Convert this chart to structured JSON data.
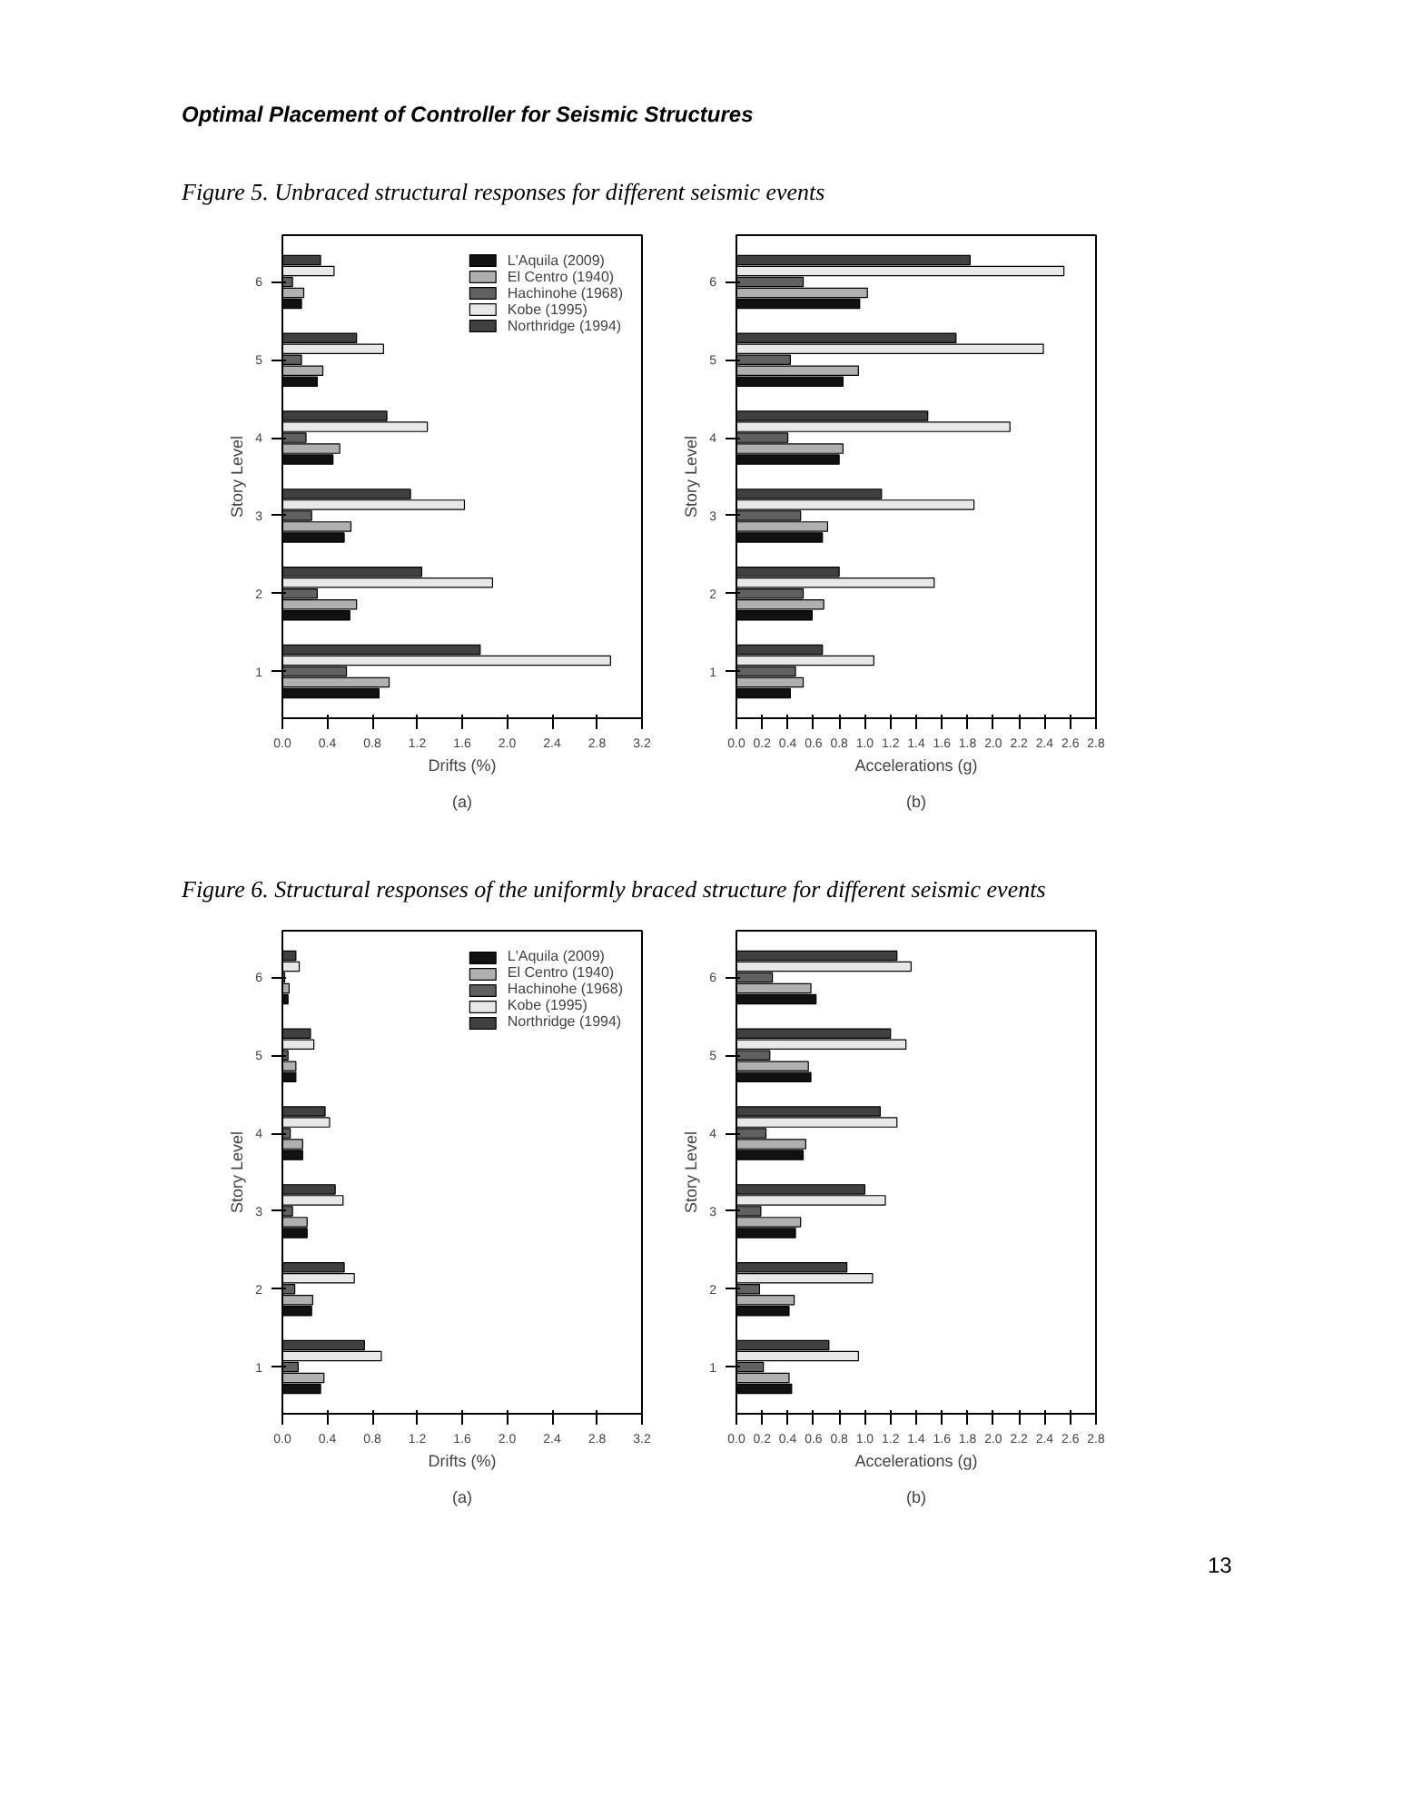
{
  "chart_data": [
    {
      "type": "bar",
      "orientation": "horizontal",
      "title": "Optimal Placement of Controller for Seismic Structures",
      "subtitle": "Figure 5. Unbraced structural responses for different seismic events",
      "xlabel": "Drifts (%)",
      "ylabel": "Story Level",
      "annotations": [
        "(a)"
      ],
      "categories": [
        "6",
        "5",
        "4",
        "3",
        "2",
        "1"
      ],
      "series": [
        {
          "name": "L'Aquila (2009)",
          "color": "#111111",
          "values": [
            0.17,
            0.31,
            0.45,
            0.55,
            0.6,
            0.86
          ]
        },
        {
          "name": "El Centro (1940)",
          "color": "#b0b0b0",
          "values": [
            0.19,
            0.36,
            0.51,
            0.61,
            0.66,
            0.95
          ]
        },
        {
          "name": "Hachinohe (1968)",
          "color": "#606060",
          "values": [
            0.09,
            0.17,
            0.21,
            0.26,
            0.31,
            0.57
          ]
        },
        {
          "name": "Kobe (1995)",
          "color": "#e8e8e8",
          "values": [
            0.46,
            0.9,
            1.29,
            1.62,
            1.87,
            2.92
          ]
        },
        {
          "name": "Northridge (1994)",
          "color": "#404040",
          "values": [
            0.34,
            0.66,
            0.93,
            1.14,
            1.24,
            1.76
          ]
        }
      ],
      "xlim": [
        0,
        3.2
      ],
      "xticks": [
        {
          "value": 0,
          "label": "0.0"
        },
        0.4,
        0.8,
        1.2,
        1.6,
        {
          "value": 2,
          "label": "2.0"
        },
        2.4,
        2.8,
        3.2
      ],
      "grid": false,
      "legend": "top right"
    },
    {
      "type": "bar",
      "orientation": "horizontal",
      "xlabel": "Accelerations (g)",
      "ylabel": "Story Level",
      "annotations": [
        "(b)"
      ],
      "categories": [
        "6",
        "5",
        "4",
        "3",
        "2",
        "1"
      ],
      "series": [
        {
          "color": "#111111",
          "values": [
            0.96,
            0.83,
            0.8,
            0.67,
            0.59,
            0.42
          ]
        },
        {
          "color": "#b0b0b0",
          "values": [
            1.02,
            0.95,
            0.83,
            0.71,
            0.68,
            0.52
          ]
        },
        {
          "color": "#606060",
          "values": [
            0.52,
            0.42,
            0.4,
            0.5,
            0.52,
            0.46
          ]
        },
        {
          "color": "#e8e8e8",
          "values": [
            2.55,
            2.39,
            2.13,
            1.85,
            1.54,
            1.07
          ]
        },
        {
          "color": "#404040",
          "values": [
            1.82,
            1.71,
            1.49,
            1.13,
            0.8,
            0.67
          ]
        }
      ],
      "xlim": [
        0,
        2.8
      ],
      "xticks": [
        {
          "value": 0,
          "label": "0.0"
        },
        0.2,
        0.4,
        0.6,
        0.8,
        {
          "value": 1,
          "label": "1.0"
        },
        1.2,
        1.4,
        1.6,
        1.8,
        {
          "value": 2,
          "label": "2.0"
        },
        2.2,
        2.4,
        2.6,
        2.8
      ],
      "grid": false
    },
    {
      "type": "bar",
      "orientation": "horizontal",
      "subtitle": "Figure 6. Structural responses of the uniformly braced structure for different seismic events",
      "xlabel": "Drifts (%)",
      "ylabel": "Story Level",
      "annotations": [
        "(a)"
      ],
      "categories": [
        "6",
        "5",
        "4",
        "3",
        "2",
        "1"
      ],
      "series": [
        {
          "name": "L'Aquila (2009)",
          "color": "#111111",
          "values": [
            0.05,
            0.12,
            0.18,
            0.22,
            0.26,
            0.34
          ]
        },
        {
          "name": "El Centro (1940)",
          "color": "#b0b0b0",
          "values": [
            0.06,
            0.12,
            0.18,
            0.22,
            0.27,
            0.37
          ]
        },
        {
          "name": "Hachinohe (1968)",
          "color": "#606060",
          "values": [
            0.02,
            0.05,
            0.07,
            0.09,
            0.11,
            0.14
          ]
        },
        {
          "name": "Kobe (1995)",
          "color": "#e8e8e8",
          "values": [
            0.15,
            0.28,
            0.42,
            0.54,
            0.64,
            0.88
          ]
        },
        {
          "name": "Northridge (1994)",
          "color": "#404040",
          "values": [
            0.12,
            0.25,
            0.38,
            0.47,
            0.55,
            0.73
          ]
        }
      ],
      "xlim": [
        0,
        3.2
      ],
      "xticks": [
        {
          "value": 0,
          "label": "0.0"
        },
        0.4,
        0.8,
        1.2,
        1.6,
        {
          "value": 2,
          "label": "2.0"
        },
        2.4,
        2.8,
        3.2
      ],
      "grid": false,
      "legend": "top right"
    },
    {
      "type": "bar",
      "orientation": "horizontal",
      "xlabel": "Accelerations (g)",
      "ylabel": "Story Level",
      "annotations": [
        "(b)",
        "13"
      ],
      "categories": [
        "6",
        "5",
        "4",
        "3",
        "2",
        "1"
      ],
      "series": [
        {
          "color": "#111111",
          "values": [
            0.62,
            0.58,
            0.52,
            0.46,
            0.41,
            0.43
          ]
        },
        {
          "color": "#b0b0b0",
          "values": [
            0.58,
            0.56,
            0.54,
            0.5,
            0.45,
            0.41
          ]
        },
        {
          "color": "#606060",
          "values": [
            0.28,
            0.26,
            0.23,
            0.19,
            0.18,
            0.21
          ]
        },
        {
          "color": "#e8e8e8",
          "values": [
            1.36,
            1.32,
            1.25,
            1.16,
            1.06,
            0.95
          ]
        },
        {
          "color": "#404040",
          "values": [
            1.25,
            1.2,
            1.12,
            1.0,
            0.86,
            0.72
          ]
        }
      ],
      "xlim": [
        0,
        2.8
      ],
      "xticks": [
        {
          "value": 0,
          "label": "0.0"
        },
        0.2,
        0.4,
        0.6,
        0.8,
        {
          "value": 1,
          "label": "1.0"
        },
        1.2,
        1.4,
        1.6,
        1.8,
        {
          "value": 2,
          "label": "2.0"
        },
        2.2,
        2.4,
        2.6,
        2.8
      ],
      "grid": false
    }
  ]
}
